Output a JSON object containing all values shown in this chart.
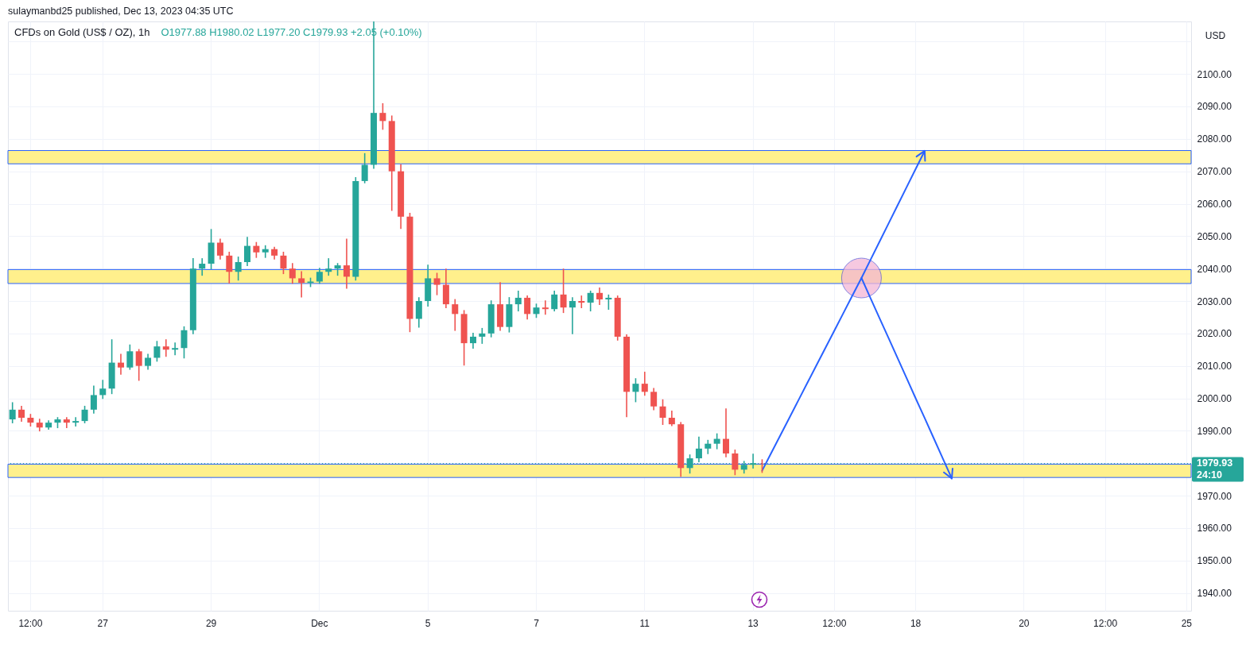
{
  "chart_data": {
    "type": "candlestick",
    "title": "CFDs on Gold (US$ / OZ), 1h",
    "subtitle": "O1977.88 H1980.02 L1977.20 C1979.93 +2.05 (+0.10%)",
    "ylabel": "USD",
    "annotations": [
      "sulaymanbd25 published, Dec 13, 2023 04:35 UTC"
    ],
    "categories": [
      null,
      null,
      "12:00",
      null,
      null,
      null,
      null,
      null,
      null,
      null,
      "27",
      null,
      null,
      null,
      null,
      null,
      null,
      null,
      null,
      null,
      null,
      null,
      "29",
      null,
      null,
      null,
      null,
      null,
      null,
      null,
      null,
      null,
      null,
      null,
      "Dec",
      null,
      null,
      null,
      null,
      null,
      null,
      null,
      null,
      null,
      null,
      null,
      "5",
      null,
      null,
      null,
      null,
      null,
      null,
      null,
      null,
      null,
      null,
      null,
      "7",
      null,
      null,
      null,
      null,
      null,
      null,
      null,
      null,
      null,
      null,
      null,
      "11",
      null,
      null,
      null,
      null,
      null,
      null,
      null,
      null,
      null,
      null,
      null,
      "13",
      null,
      null,
      null,
      null,
      null,
      null,
      null,
      null,
      "12:00",
      null,
      null,
      null,
      null,
      null,
      null,
      null,
      null,
      "18",
      null,
      null,
      null,
      null,
      null,
      null,
      null,
      null,
      null,
      null,
      null,
      "20",
      null,
      null,
      null,
      null,
      null,
      null,
      null,
      null,
      "12:00",
      null,
      null,
      null,
      null,
      null,
      null,
      null,
      null,
      "25"
    ],
    "ohlc": [
      [
        1993.5,
        1998.6,
        1992.5,
        1996.5
      ],
      [
        1996.5,
        1997.5,
        1993,
        1994
      ],
      [
        1994,
        1995,
        1991.5,
        1992.5
      ],
      [
        1992.5,
        1993.5,
        1990,
        1991
      ],
      [
        1991,
        1993,
        1990.5,
        1992.5
      ],
      [
        1992.5,
        1994,
        1991,
        1993.5
      ],
      [
        1993.5,
        1994,
        1991,
        1992.5
      ],
      [
        1992.5,
        1994,
        1991.5,
        1993
      ],
      [
        1993,
        1997.5,
        1992.5,
        1996.5
      ],
      [
        1996.5,
        2003.7,
        1995.5,
        2001
      ],
      [
        2001,
        2005.5,
        2000,
        2003
      ],
      [
        2003,
        2018,
        2001.5,
        2011
      ],
      [
        2011,
        2013.5,
        2007.5,
        2009.5
      ],
      [
        2009.5,
        2016.4,
        2009,
        2014.5
      ],
      [
        2014.5,
        2015,
        2005.6,
        2010
      ],
      [
        2010,
        2013.5,
        2009,
        2012.5
      ],
      [
        2012.5,
        2017.5,
        2011.5,
        2016
      ],
      [
        2016,
        2018,
        2013,
        2015
      ],
      [
        2015,
        2017,
        2013.5,
        2015.5
      ],
      [
        2015.5,
        2022,
        2012.5,
        2021
      ],
      [
        2021,
        2043,
        2020,
        2040
      ],
      [
        2040,
        2043,
        2038,
        2041.5
      ],
      [
        2041.5,
        2052,
        2040,
        2048
      ],
      [
        2048,
        2049,
        2043,
        2044
      ],
      [
        2044,
        2045,
        2035.6,
        2039
      ],
      [
        2039,
        2043.5,
        2036.5,
        2042
      ],
      [
        2042,
        2049.6,
        2041,
        2047
      ],
      [
        2047,
        2048,
        2043.5,
        2045
      ],
      [
        2045,
        2047,
        2043.5,
        2046
      ],
      [
        2046,
        2046.5,
        2043,
        2044
      ],
      [
        2044,
        2045,
        2038.5,
        2040
      ],
      [
        2040,
        2041.5,
        2035.5,
        2037
      ],
      [
        2037,
        2039,
        2031.3,
        2035.6
      ],
      [
        2035.6,
        2037,
        2034.5,
        2036
      ],
      [
        2036,
        2040,
        2035.5,
        2039
      ],
      [
        2039,
        2043,
        2038,
        2040
      ],
      [
        2040,
        2041.5,
        2038,
        2041
      ],
      [
        2041,
        2049,
        2034,
        2037.5
      ],
      [
        2037.5,
        2068,
        2036.5,
        2067
      ],
      [
        2067,
        2075.4,
        2066.5,
        2072
      ],
      [
        2072,
        2116,
        2071,
        2088
      ],
      [
        2088,
        2090.8,
        2083,
        2085.5
      ],
      [
        2085.5,
        2087,
        2058,
        2070
      ],
      [
        2070,
        2072,
        2052.4,
        2056
      ],
      [
        2056,
        2057,
        2020.6,
        2024.5
      ],
      [
        2024.5,
        2031,
        2022,
        2030
      ],
      [
        2030,
        2041,
        2028.5,
        2037
      ],
      [
        2037,
        2038.5,
        2032,
        2035
      ],
      [
        2035,
        2039.8,
        2028,
        2029
      ],
      [
        2029,
        2030.4,
        2021,
        2026
      ],
      [
        2026,
        2027,
        2010.3,
        2017
      ],
      [
        2017,
        2020,
        2015.5,
        2019
      ],
      [
        2019,
        2021.5,
        2017,
        2020
      ],
      [
        2020,
        2030,
        2019,
        2029
      ],
      [
        2029,
        2035.6,
        2021,
        2022
      ],
      [
        2022,
        2031,
        2020.5,
        2029
      ],
      [
        2029,
        2033,
        2027,
        2031
      ],
      [
        2031,
        2031.5,
        2024.5,
        2026
      ],
      [
        2026,
        2029,
        2025,
        2028
      ],
      [
        2028,
        2030,
        2026,
        2027.5
      ],
      [
        2027.5,
        2033,
        2027,
        2032
      ],
      [
        2032,
        2039.8,
        2026.5,
        2028
      ],
      [
        2028,
        2031,
        2020,
        2030
      ],
      [
        2030,
        2031.5,
        2028,
        2029.5
      ],
      [
        2029.5,
        2033,
        2027,
        2032.5
      ],
      [
        2032.5,
        2034,
        2029,
        2030.5
      ],
      [
        2030.5,
        2031.8,
        2027.5,
        2031
      ],
      [
        2031,
        2031.5,
        2018,
        2019
      ],
      [
        2019,
        2019.5,
        1994.4,
        2002
      ],
      [
        2002,
        2006,
        1999,
        2004.5
      ],
      [
        2004.5,
        2008,
        2001,
        2002
      ],
      [
        2002,
        2003,
        1996.5,
        1997.5
      ],
      [
        1997.5,
        1999.5,
        1992,
        1994
      ],
      [
        1994,
        1996,
        1991.6,
        1992
      ],
      [
        1992,
        1992.5,
        1976,
        1978.5
      ],
      [
        1978.5,
        1982.5,
        1977,
        1981.5
      ],
      [
        1981.5,
        1988,
        1980.5,
        1984.5
      ],
      [
        1984.5,
        1987,
        1983,
        1986
      ],
      [
        1986,
        1989,
        1984.5,
        1987.5
      ],
      [
        1987.5,
        1996.7,
        1982,
        1983
      ],
      [
        1983,
        1984,
        1976.5,
        1978
      ],
      [
        1978,
        1980.5,
        1977,
        1979.5
      ],
      [
        1979.5,
        1982.7,
        1978.5,
        1980
      ],
      [
        1980,
        1981,
        1977.2,
        1979.93
      ],
      null,
      null,
      null,
      null,
      null,
      null,
      null,
      null,
      null,
      null,
      null,
      null,
      null,
      null,
      null,
      null,
      null,
      null,
      null,
      null,
      null,
      null,
      null,
      null,
      null,
      null,
      null,
      null,
      null,
      null,
      null,
      null,
      null,
      null,
      null,
      null,
      null,
      null,
      null,
      null,
      null,
      null,
      null,
      null,
      null,
      null,
      null
    ],
    "colors": [
      "#26a69a",
      "#ef5350",
      "#ef5350",
      "#ef5350",
      "#26a69a",
      "#26a69a",
      "#ef5350",
      "#26a69a",
      "#26a69a",
      "#26a69a",
      "#26a69a",
      "#26a69a",
      "#ef5350",
      "#26a69a",
      "#ef5350",
      "#26a69a",
      "#26a69a",
      "#ef5350",
      "#26a69a",
      "#26a69a",
      "#26a69a",
      "#26a69a",
      "#26a69a",
      "#ef5350",
      "#ef5350",
      "#26a69a",
      "#26a69a",
      "#ef5350",
      "#26a69a",
      "#ef5350",
      "#ef5350",
      "#ef5350",
      "#ef5350",
      "#26a69a",
      "#26a69a",
      "#26a69a",
      "#26a69a",
      "#ef5350",
      "#26a69a",
      "#26a69a",
      "#26a69a",
      "#ef5350",
      "#ef5350",
      "#ef5350",
      "#ef5350",
      "#26a69a",
      "#26a69a",
      "#ef5350",
      "#ef5350",
      "#ef5350",
      "#ef5350",
      "#26a69a",
      "#26a69a",
      "#26a69a",
      "#ef5350",
      "#26a69a",
      "#26a69a",
      "#ef5350",
      "#26a69a",
      "#ef5350",
      "#26a69a",
      "#ef5350",
      "#26a69a",
      "#ef5350",
      "#26a69a",
      "#ef5350",
      "#26a69a",
      "#ef5350",
      "#ef5350",
      "#26a69a",
      "#ef5350",
      "#ef5350",
      "#ef5350",
      "#ef5350",
      "#ef5350",
      "#26a69a",
      "#26a69a",
      "#26a69a",
      "#26a69a",
      "#ef5350",
      "#ef5350",
      "#26a69a",
      "#26a69a",
      "#ef5350",
      null,
      null,
      null,
      null,
      null,
      null,
      null,
      null,
      null,
      null,
      null,
      null,
      null,
      null,
      null,
      null,
      null,
      null,
      null,
      null,
      null,
      null,
      null,
      null,
      null,
      null,
      null,
      null,
      null,
      null,
      null,
      null,
      null,
      null,
      null,
      null,
      null,
      null,
      null,
      null,
      null,
      null,
      null,
      null,
      null,
      null,
      null
    ],
    "series": [
      {
        "type": "line",
        "color": "#2962ff",
        "values": [
          null,
          null,
          null,
          null,
          null,
          null,
          null,
          null,
          null,
          null,
          null,
          null,
          null,
          null,
          null,
          null,
          null,
          null,
          null,
          null,
          null,
          null,
          null,
          null,
          null,
          null,
          null,
          null,
          null,
          null,
          null,
          null,
          null,
          null,
          null,
          null,
          null,
          null,
          null,
          null,
          null,
          null,
          null,
          null,
          null,
          null,
          null,
          null,
          null,
          null,
          null,
          null,
          null,
          null,
          null,
          null,
          null,
          null,
          null,
          null,
          null,
          null,
          null,
          null,
          null,
          null,
          null,
          null,
          null,
          null,
          null,
          null,
          null,
          null,
          null,
          null,
          null,
          null,
          null,
          null,
          null,
          null,
          null,
          1977.7,
          1983.1,
          1988.5,
          1993.9,
          1999.3,
          2004.7,
          2010.1,
          2015.5,
          2020.9,
          2026.3,
          2031.7,
          2037.1,
          2030.9,
          2024.7,
          2018.6,
          2012.4,
          2006.2,
          2000.0,
          1993.9,
          1987.7,
          1981.5,
          1975.3,
          null,
          null,
          null,
          null,
          null,
          null,
          null,
          null,
          null,
          null,
          null,
          null,
          null,
          null,
          null,
          null,
          null,
          null,
          null,
          null,
          null,
          null,
          null,
          null,
          null,
          null
        ]
      },
      {
        "type": "line",
        "color": "#2962ff",
        "values": [
          null,
          null,
          null,
          null,
          null,
          null,
          null,
          null,
          null,
          null,
          null,
          null,
          null,
          null,
          null,
          null,
          null,
          null,
          null,
          null,
          null,
          null,
          null,
          null,
          null,
          null,
          null,
          null,
          null,
          null,
          null,
          null,
          null,
          null,
          null,
          null,
          null,
          null,
          null,
          null,
          null,
          null,
          null,
          null,
          null,
          null,
          null,
          null,
          null,
          null,
          null,
          null,
          null,
          null,
          null,
          null,
          null,
          null,
          null,
          null,
          null,
          null,
          null,
          null,
          null,
          null,
          null,
          null,
          null,
          null,
          null,
          null,
          null,
          null,
          null,
          null,
          null,
          null,
          null,
          null,
          null,
          null,
          null,
          null,
          null,
          null,
          null,
          null,
          null,
          null,
          null,
          null,
          null,
          null,
          2037.1,
          2042.7,
          2048.3,
          2053.9,
          2059.5,
          2065.1,
          2070.7,
          2076.3,
          null,
          null,
          null,
          null,
          null,
          null,
          null,
          null,
          null,
          null,
          null,
          null,
          null,
          null,
          null,
          null,
          null,
          null,
          null,
          null,
          null,
          null,
          null,
          null,
          null,
          null,
          null,
          null,
          null
        ]
      },
      {
        "type": "scatter",
        "color": "#f3b6d6",
        "values": [
          null,
          null,
          null,
          null,
          null,
          null,
          null,
          null,
          null,
          null,
          null,
          null,
          null,
          null,
          null,
          null,
          null,
          null,
          null,
          null,
          null,
          null,
          null,
          null,
          null,
          null,
          null,
          null,
          null,
          null,
          null,
          null,
          null,
          null,
          null,
          null,
          null,
          null,
          null,
          null,
          null,
          null,
          null,
          null,
          null,
          null,
          null,
          null,
          null,
          null,
          null,
          null,
          null,
          null,
          null,
          null,
          null,
          null,
          null,
          null,
          null,
          null,
          null,
          null,
          null,
          null,
          null,
          null,
          null,
          null,
          null,
          null,
          null,
          null,
          null,
          null,
          null,
          null,
          null,
          null,
          null,
          null,
          null,
          null,
          null,
          null,
          null,
          null,
          null,
          null,
          null,
          null,
          null,
          null,
          2037.1,
          null,
          null,
          null,
          null,
          null,
          null,
          null,
          null,
          null,
          null,
          null,
          null,
          null,
          null,
          null,
          null,
          null,
          null,
          null,
          null,
          null,
          null,
          null,
          null,
          null,
          null,
          null,
          null,
          null,
          null,
          null,
          null,
          null,
          null,
          null,
          null
        ]
      }
    ],
    "bands": [
      {
        "axis": "y",
        "from": 2072.3,
        "to": 2076.4,
        "color": "#fff08c"
      },
      {
        "axis": "y",
        "from": 2035.4,
        "to": 2039.7,
        "color": "#fff08c"
      },
      {
        "axis": "y",
        "from": 1975.6,
        "to": 1979.7,
        "color": "#fff08c"
      }
    ],
    "ref_lines": [
      {
        "axis": "y",
        "value": 1979.93,
        "label": "1979.93\n24:10",
        "color": "#26a69a",
        "line_style": "dotted"
      }
    ],
    "ylim": [
      1934.5,
      2116.2
    ],
    "yticks": [
      {
        "value": 1940,
        "label": "1940.00"
      },
      {
        "value": 1950,
        "label": "1950.00"
      },
      {
        "value": 1960,
        "label": "1960.00"
      },
      {
        "value": 1970,
        "label": "1970.00"
      },
      {
        "value": 1980,
        "label": null
      },
      {
        "value": 1990,
        "label": "1990.00"
      },
      {
        "value": 2000,
        "label": "2000.00"
      },
      {
        "value": 2010,
        "label": "2010.00"
      },
      {
        "value": 2020,
        "label": "2020.00"
      },
      {
        "value": 2030,
        "label": "2030.00"
      },
      {
        "value": 2040,
        "label": "2040.00"
      },
      {
        "value": 2050,
        "label": "2050.00"
      },
      {
        "value": 2060,
        "label": "2060.00"
      },
      {
        "value": 2070,
        "label": "2070.00"
      },
      {
        "value": 2080,
        "label": "2080.00"
      },
      {
        "value": 2090,
        "label": "2090.00"
      },
      {
        "value": 2100,
        "label": "2100.00"
      },
      {
        "value": 2110,
        "label": null
      }
    ],
    "grid": true
  }
}
